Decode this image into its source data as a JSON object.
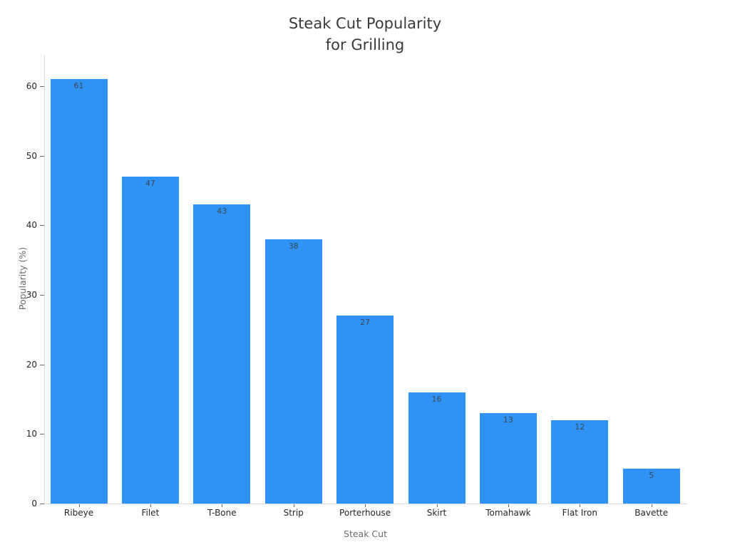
{
  "chart_data": {
    "type": "bar",
    "title": "Steak Cut Popularity\nfor Grilling",
    "xlabel": "Steak Cut",
    "ylabel": "Popularity (%)",
    "categories": [
      "Ribeye",
      "Filet",
      "T-Bone",
      "Strip",
      "Porterhouse",
      "Skirt",
      "Tomahawk",
      "Flat Iron",
      "Bavette"
    ],
    "values": [
      61,
      47,
      43,
      38,
      27,
      16,
      13,
      12,
      5
    ],
    "yticks": [
      0,
      10,
      20,
      30,
      40,
      50,
      60
    ],
    "ylim": [
      0,
      64.5
    ],
    "grid": false,
    "legend": false,
    "value_labels_shown": true,
    "bar_color": "#2F92F5",
    "value_label_color": "#3A4750"
  }
}
